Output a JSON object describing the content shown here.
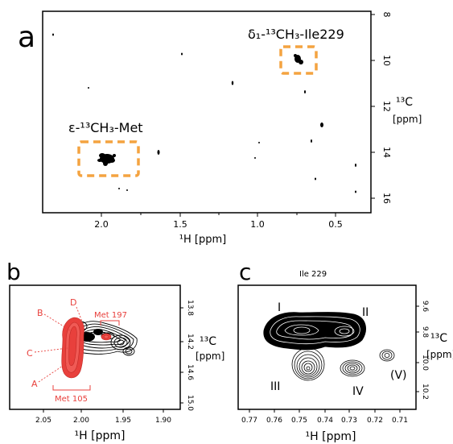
{
  "panel_a": {
    "letter": "a",
    "xlabel": "¹H [ppm]",
    "ylabel_top": "¹³C",
    "ylabel_bottom": "[ppm]",
    "x_ticks": [
      "2.0",
      "1.5",
      "1.0",
      "0.5"
    ],
    "y_ticks": [
      "8",
      "10",
      "12",
      "14",
      "16"
    ],
    "label_met": "ε-¹³CH₃-Met",
    "label_ile": "δ₁-¹³CH₃-Ile229",
    "box_color": "#f4a340"
  },
  "panel_b": {
    "letter": "b",
    "xlabel": "¹H [ppm]",
    "ylabel_top": "¹³C",
    "ylabel_bottom": "[ppm]",
    "x_ticks": [
      "2.05",
      "2.00",
      "1.95",
      "1.90"
    ],
    "y_ticks": [
      "13.8",
      "14.2",
      "14.6",
      "15.0"
    ],
    "peak_labels": [
      "A",
      "B",
      "C",
      "D"
    ],
    "met197": "Met 197",
    "met105": "Met 105",
    "red": "#e8403c"
  },
  "panel_c": {
    "letter": "c",
    "title": "Ile 229",
    "xlabel": "¹H [ppm]",
    "ylabel_top": "¹³C",
    "ylabel_bottom": "[ppm]",
    "x_ticks": [
      "0.77",
      "0.76",
      "0.75",
      "0.74",
      "0.73",
      "0.72",
      "0.71"
    ],
    "y_ticks": [
      "9.6",
      "9.8",
      "10.0",
      "10.2"
    ],
    "peak_labels": [
      "I",
      "II",
      "III",
      "IV",
      "(V)"
    ]
  }
}
